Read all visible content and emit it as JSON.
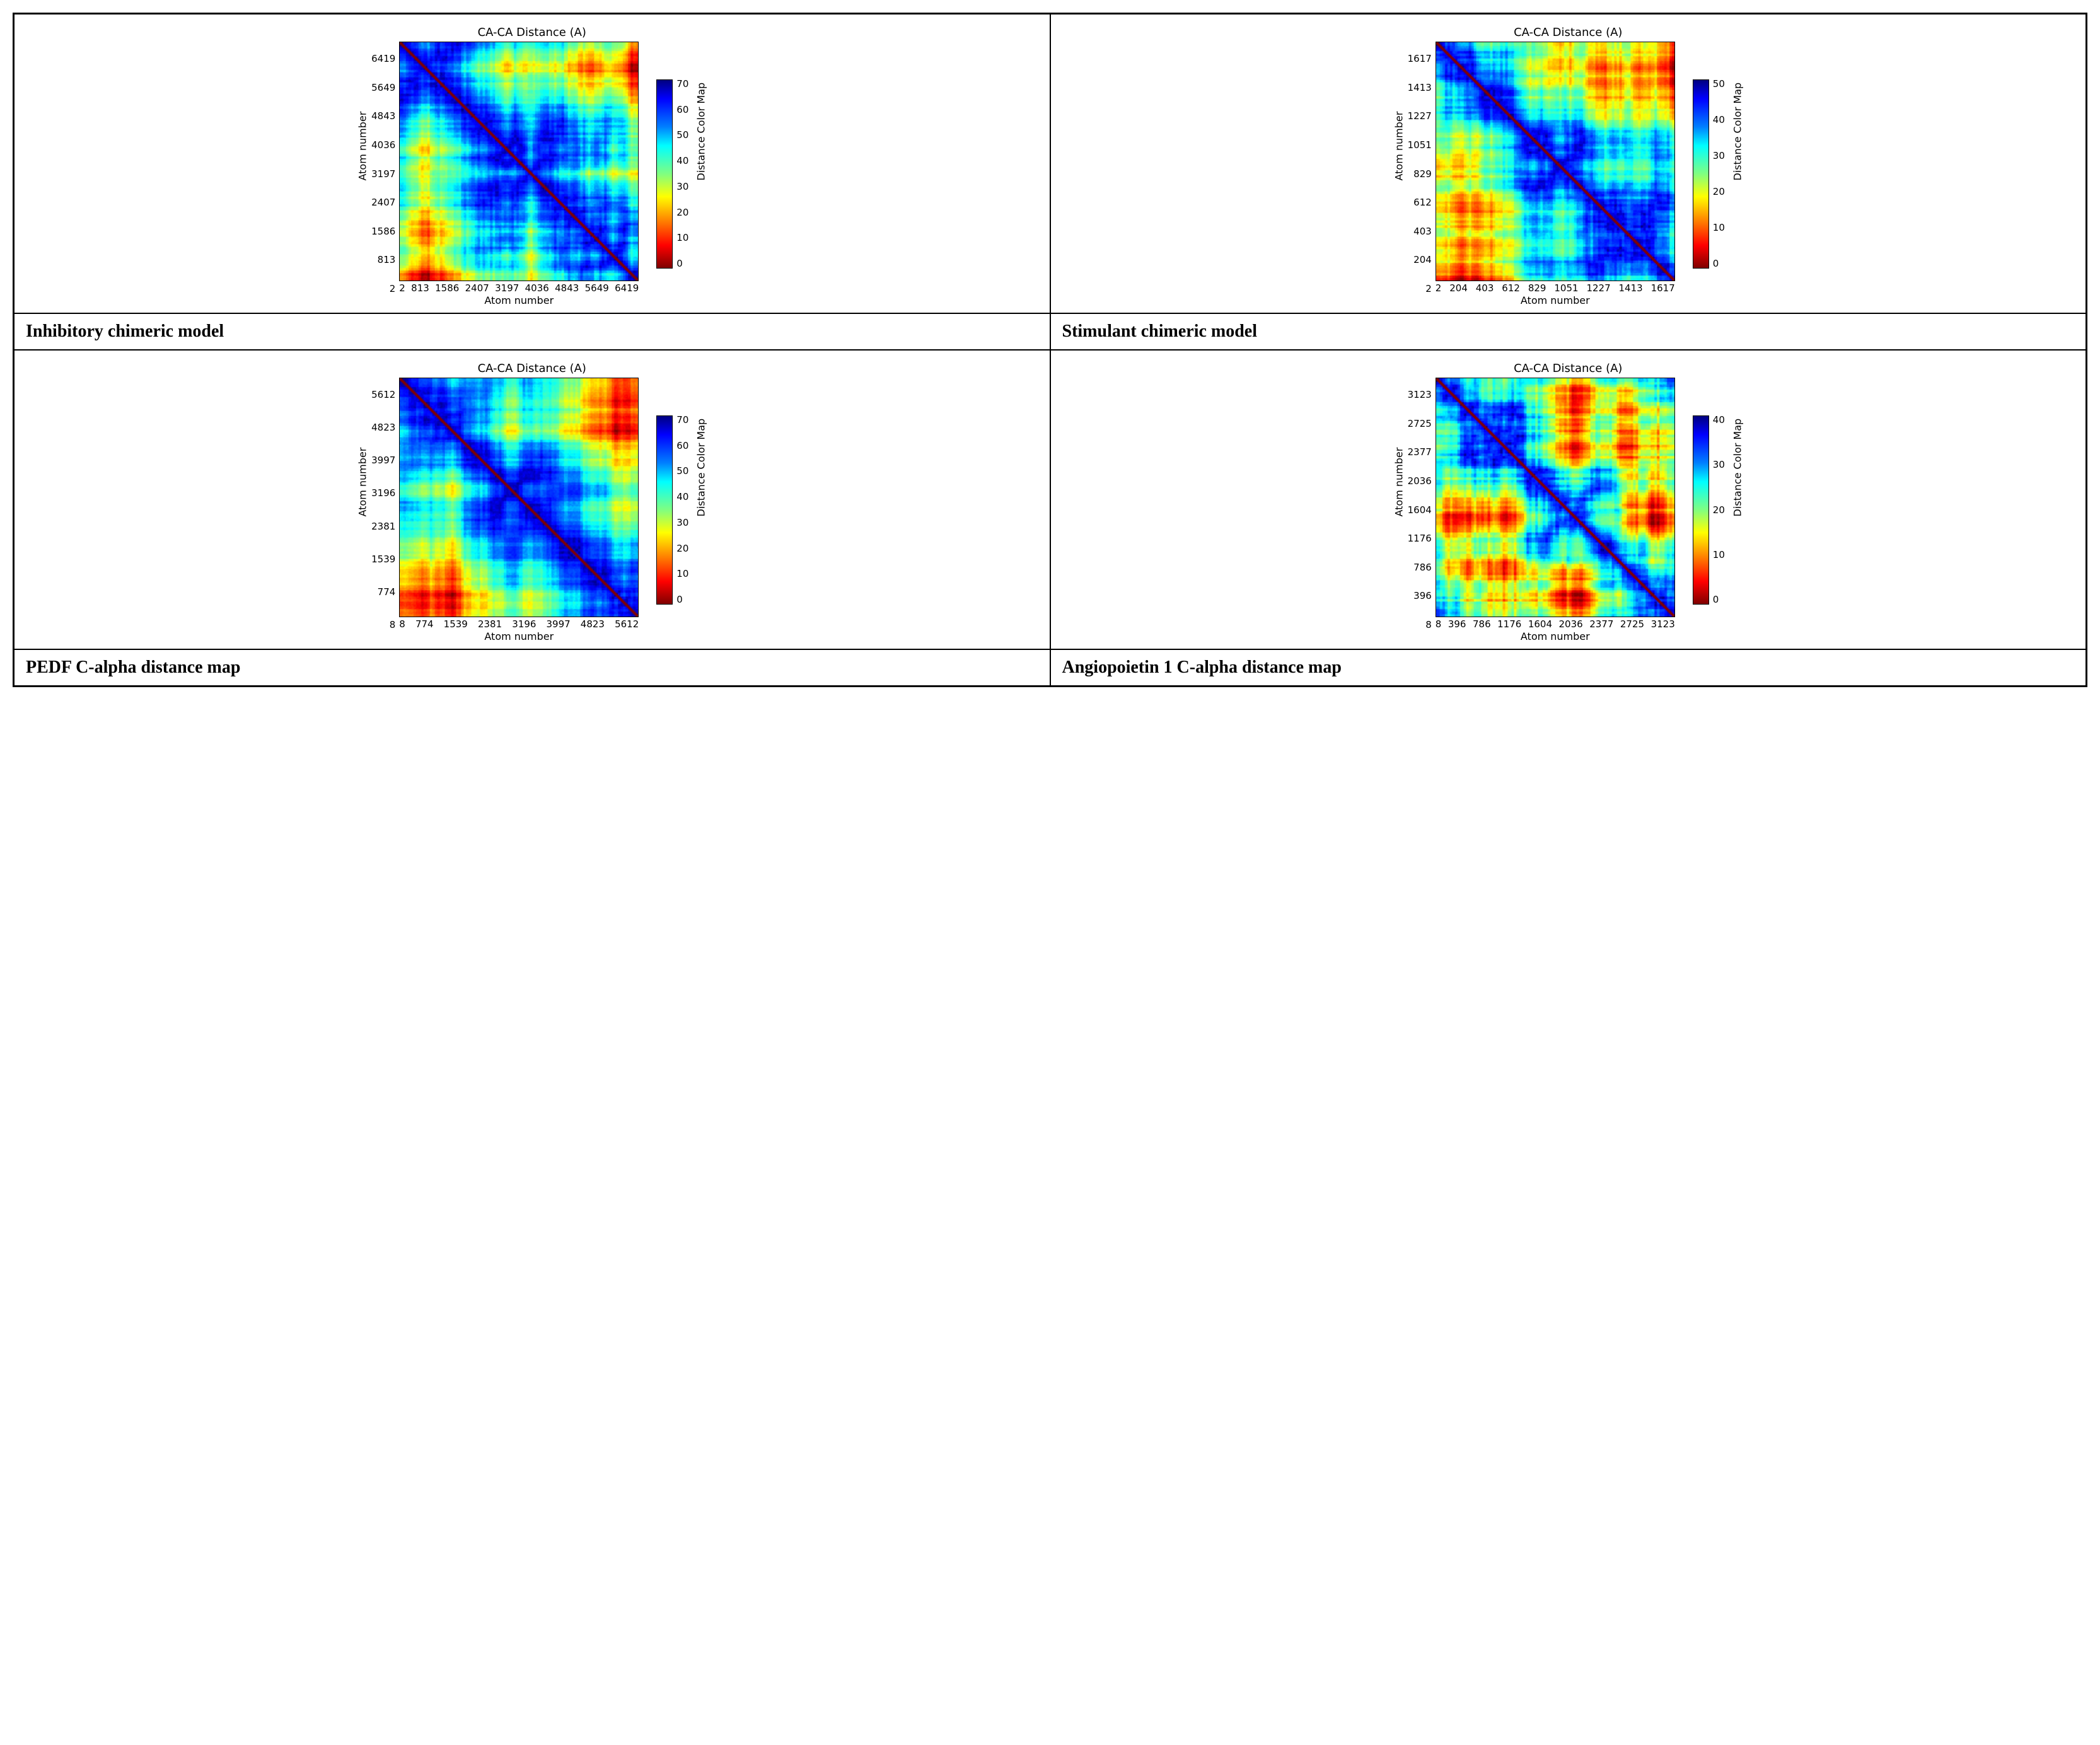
{
  "layout": {
    "rows": 4,
    "cols": 2
  },
  "colormap": {
    "name": "jet",
    "stops": [
      {
        "p": 0.0,
        "c": "#000080"
      },
      {
        "p": 0.1,
        "c": "#0000ff"
      },
      {
        "p": 0.25,
        "c": "#0080ff"
      },
      {
        "p": 0.35,
        "c": "#00ffff"
      },
      {
        "p": 0.5,
        "c": "#80ff80"
      },
      {
        "p": 0.62,
        "c": "#ffff00"
      },
      {
        "p": 0.75,
        "c": "#ff8000"
      },
      {
        "p": 0.88,
        "c": "#ff0000"
      },
      {
        "p": 1.0,
        "c": "#800000"
      }
    ]
  },
  "panels": [
    {
      "id": "inhibitory",
      "type": "heatmap",
      "title": "CA-CA Distance (A)",
      "xlabel": "Atom number",
      "ylabel": "Atom number",
      "cbar_label": "Distance Color Map",
      "x_ticks": [
        2,
        813,
        1586,
        2407,
        3197,
        4036,
        4843,
        5649,
        6419
      ],
      "y_ticks": [
        2,
        813,
        1586,
        2407,
        3197,
        4036,
        4843,
        5649,
        6419
      ],
      "cbar_ticks": [
        0,
        10,
        20,
        30,
        40,
        50,
        60,
        70
      ],
      "cbar_min": 0,
      "cbar_max": 75,
      "axis_min": 2,
      "axis_max": 6800,
      "title_fontsize": 18,
      "tick_fontsize": 15,
      "label_fontsize": 16,
      "background_color": "#ffffff",
      "seed": 11,
      "pattern_scale": 1.15
    },
    {
      "id": "stimulant",
      "type": "heatmap",
      "title": "CA-CA Distance (A)",
      "xlabel": "Atom number",
      "ylabel": "Atom number",
      "cbar_label": "Distance Color Map",
      "x_ticks": [
        2,
        204,
        403,
        612,
        829,
        1051,
        1227,
        1413,
        1617
      ],
      "y_ticks": [
        2,
        204,
        403,
        612,
        829,
        1051,
        1227,
        1413,
        1617
      ],
      "cbar_ticks": [
        0,
        10,
        20,
        30,
        40,
        50
      ],
      "cbar_min": 0,
      "cbar_max": 52,
      "axis_min": 2,
      "axis_max": 1760,
      "title_fontsize": 18,
      "tick_fontsize": 15,
      "label_fontsize": 16,
      "background_color": "#ffffff",
      "seed": 29,
      "pattern_scale": 0.95
    },
    {
      "id": "pedf",
      "type": "heatmap",
      "title": "CA-CA Distance (A)",
      "xlabel": "Atom number",
      "ylabel": "Atom number",
      "cbar_label": "Distance Color Map",
      "x_ticks": [
        8,
        774,
        1539,
        2381,
        3196,
        3997,
        4823,
        5612
      ],
      "y_ticks": [
        8,
        774,
        1539,
        2381,
        3196,
        3997,
        4823,
        5612
      ],
      "cbar_ticks": [
        0,
        10,
        20,
        30,
        40,
        50,
        60,
        70
      ],
      "cbar_min": 0,
      "cbar_max": 75,
      "axis_min": 8,
      "axis_max": 6100,
      "title_fontsize": 18,
      "tick_fontsize": 15,
      "label_fontsize": 16,
      "background_color": "#ffffff",
      "seed": 7,
      "pattern_scale": 1.1
    },
    {
      "id": "ang1",
      "type": "heatmap",
      "title": "CA-CA Distance (A)",
      "xlabel": "Atom number",
      "ylabel": "Atom number",
      "cbar_label": "Distance Color Map",
      "x_ticks": [
        8,
        396,
        786,
        1176,
        1604,
        2036,
        2377,
        2725,
        3123
      ],
      "y_ticks": [
        8,
        396,
        786,
        1176,
        1604,
        2036,
        2377,
        2725,
        3123
      ],
      "cbar_ticks": [
        0,
        10,
        20,
        30,
        40
      ],
      "cbar_min": 0,
      "cbar_max": 48,
      "axis_min": 8,
      "axis_max": 3400,
      "title_fontsize": 18,
      "tick_fontsize": 15,
      "label_fontsize": 16,
      "background_color": "#ffffff",
      "seed": 41,
      "pattern_scale": 0.9
    }
  ],
  "captions": {
    "inhibitory": "Inhibitory chimeric model",
    "stimulant": "Stimulant chimeric model",
    "pedf": "PEDF C-alpha distance map",
    "ang1": "Angiopoietin 1 C-alpha distance map"
  }
}
